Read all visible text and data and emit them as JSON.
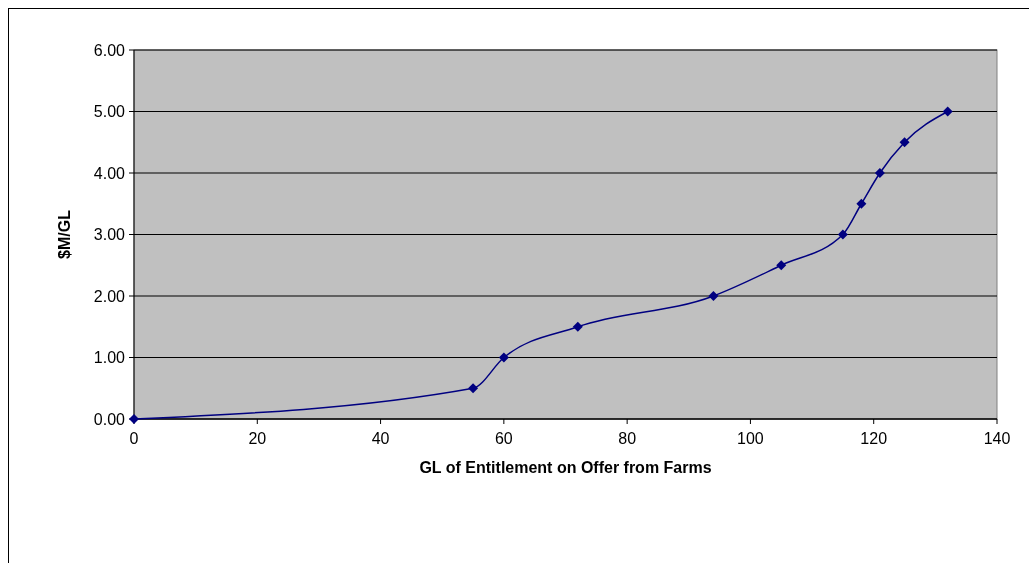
{
  "chart_data": {
    "type": "line",
    "xlabel": "GL of Entitlement on Offer from Farms",
    "ylabel": "$M/GL",
    "x": [
      0,
      55,
      60,
      72,
      94,
      105,
      115,
      118,
      121,
      125,
      132
    ],
    "series": [
      {
        "color": "#000080",
        "values": [
          0,
          0.5,
          1,
          1.5,
          2,
          2.5,
          3,
          3.5,
          4,
          4.5,
          5
        ]
      }
    ],
    "xlim": [
      0,
      140
    ],
    "xticks": [
      0,
      20,
      40,
      60,
      80,
      100,
      120,
      140
    ],
    "ylim": [
      0,
      6
    ],
    "yticks": [
      {
        "value": 0,
        "label": "0.00"
      },
      {
        "value": 1,
        "label": "1.00"
      },
      {
        "value": 2,
        "label": "2.00"
      },
      {
        "value": 3,
        "label": "3.00"
      },
      {
        "value": 4,
        "label": "4.00"
      },
      {
        "value": 5,
        "label": "5.00"
      },
      {
        "value": 6,
        "label": "6.00"
      }
    ],
    "grid": "y",
    "marker": "diamond",
    "line_style": "solid"
  }
}
